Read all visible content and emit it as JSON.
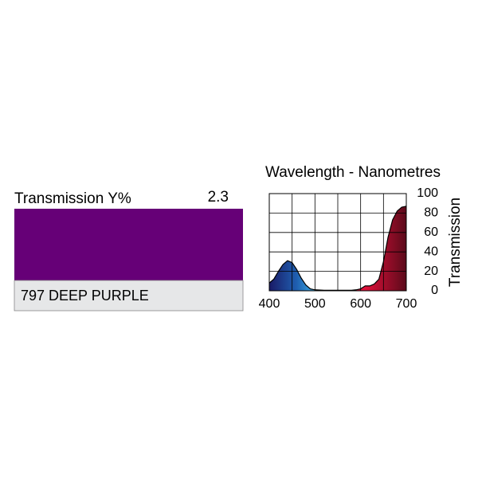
{
  "filter": {
    "label": "Transmission Y%",
    "value": 2.3,
    "name": "797 DEEP PURPLE",
    "color": "#660077"
  },
  "chart_data": {
    "type": "area",
    "title": "Wavelength - Nanometres",
    "y_label": "Transmission",
    "x": [
      400,
      410,
      420,
      430,
      440,
      450,
      460,
      470,
      480,
      490,
      500,
      520,
      540,
      560,
      580,
      590,
      600,
      610,
      620,
      630,
      640,
      650,
      660,
      670,
      680,
      690,
      700
    ],
    "values": [
      8,
      12,
      20,
      27,
      31,
      29,
      22,
      13,
      6,
      2,
      1,
      0.5,
      0.5,
      0.5,
      0.5,
      1,
      2,
      5,
      5,
      7,
      12,
      30,
      55,
      73,
      82,
      86,
      87
    ],
    "xlim": [
      400,
      700
    ],
    "xticks": [
      400,
      500,
      600,
      700
    ],
    "ylim": [
      0,
      100
    ],
    "yticks": [
      0,
      20,
      40,
      60,
      80,
      100
    ],
    "xgrid": [
      400,
      450,
      500,
      550,
      600,
      650,
      700
    ],
    "grid": true
  }
}
